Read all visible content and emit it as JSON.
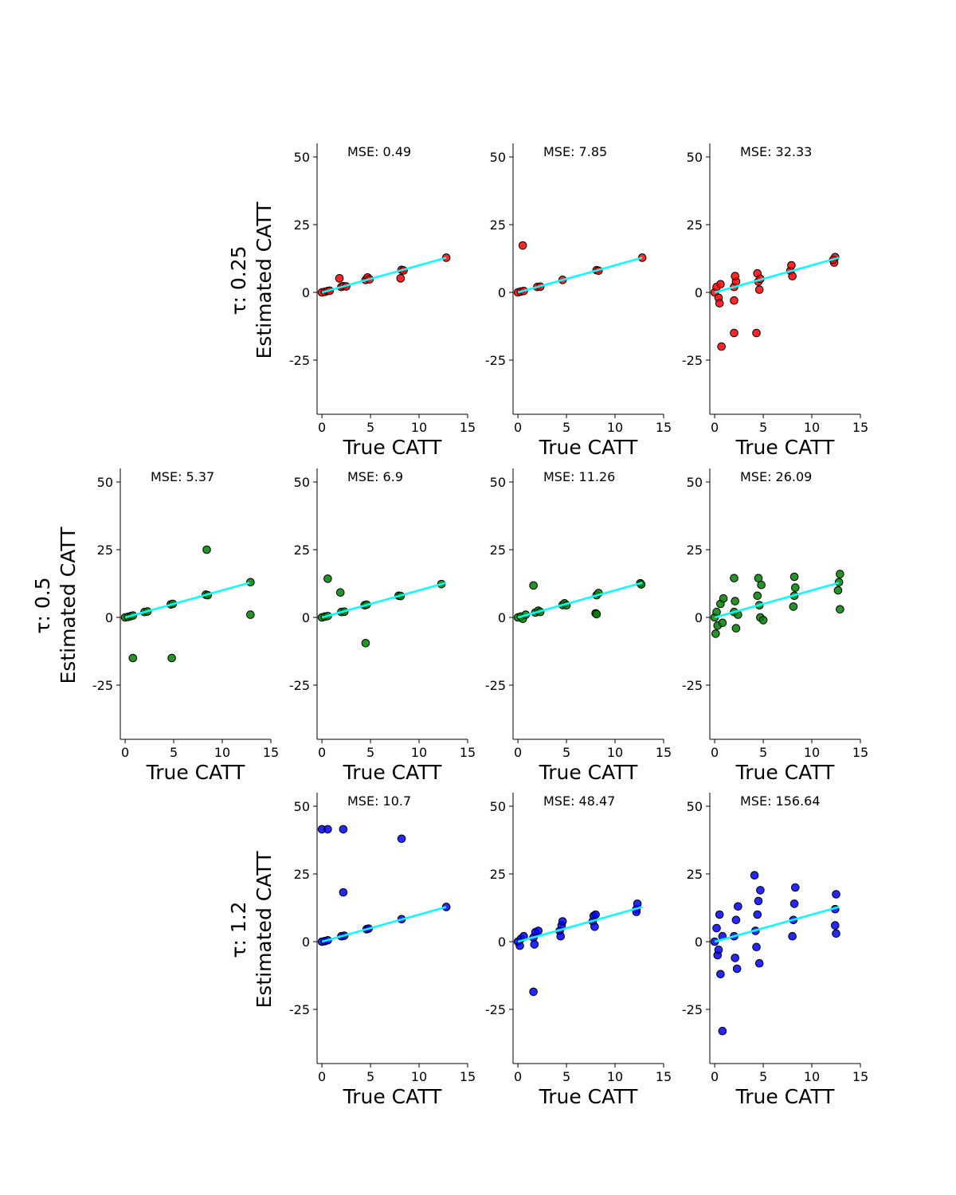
{
  "chart_data": {
    "type": "scatter",
    "xlabel": "True CATT",
    "ylabel": "Estimated CATT",
    "xlim": [
      -0.5,
      15
    ],
    "ylim": [
      -45,
      55
    ],
    "xticks": [
      0,
      5,
      10,
      15
    ],
    "yticks": [
      -25,
      0,
      25,
      50
    ],
    "fit_line": {
      "color": "#00ffff",
      "x": [
        0,
        12.8
      ],
      "y": [
        0,
        12.8
      ]
    },
    "rows": [
      {
        "title_line1": "τ: 0.25",
        "title_line2": "Estimated CATT",
        "color": "#ff0000",
        "panels": [
          null,
          {
            "mse": "MSE: 0.49",
            "points": [
              [
                0,
                0
              ],
              [
                0.3,
                0.2
              ],
              [
                0.6,
                0.5
              ],
              [
                0.8,
                0.6
              ],
              [
                2,
                2
              ],
              [
                2.2,
                2.3
              ],
              [
                2.5,
                2.2
              ],
              [
                1.8,
                5.2
              ],
              [
                4.5,
                4.6
              ],
              [
                4.7,
                5.5
              ],
              [
                4.9,
                4.8
              ],
              [
                8.2,
                8.3
              ],
              [
                8.4,
                8.1
              ],
              [
                8.1,
                5.2
              ],
              [
                12.8,
                12.8
              ]
            ]
          },
          {
            "mse": "MSE: 7.85",
            "points": [
              [
                0,
                0
              ],
              [
                0.3,
                0.3
              ],
              [
                0.6,
                0.5
              ],
              [
                0.5,
                17.3
              ],
              [
                2,
                2
              ],
              [
                2.3,
                2.1
              ],
              [
                4.6,
                4.6
              ],
              [
                8.1,
                8.2
              ],
              [
                8.3,
                8
              ],
              [
                12.8,
                12.8
              ]
            ]
          },
          {
            "mse": "MSE: 32.33",
            "points": [
              [
                0,
                0
              ],
              [
                0.2,
                2
              ],
              [
                0.4,
                -2
              ],
              [
                0.6,
                3
              ],
              [
                0.5,
                -4
              ],
              [
                0.7,
                -20
              ],
              [
                2,
                2
              ],
              [
                2.2,
                4
              ],
              [
                2,
                -3
              ],
              [
                2.1,
                6
              ],
              [
                2,
                -15
              ],
              [
                4.5,
                4
              ],
              [
                4.4,
                7
              ],
              [
                4.6,
                1
              ],
              [
                4.3,
                -15
              ],
              [
                4.7,
                5
              ],
              [
                7.8,
                8
              ],
              [
                7.9,
                10
              ],
              [
                8,
                6
              ],
              [
                12.3,
                11
              ],
              [
                12.4,
                13
              ],
              [
                12.2,
                12
              ]
            ]
          }
        ]
      },
      {
        "title_line1": "τ: 0.5",
        "title_line2": "Estimated CATT",
        "color": "#008000",
        "panels": [
          {
            "mse": "MSE: 5.37",
            "points": [
              [
                0,
                0
              ],
              [
                0.3,
                0.2
              ],
              [
                0.6,
                0.5
              ],
              [
                0.8,
                0.7
              ],
              [
                2,
                2
              ],
              [
                2.3,
                2.2
              ],
              [
                4.7,
                4.8
              ],
              [
                4.9,
                5
              ],
              [
                8.3,
                8.4
              ],
              [
                8.5,
                8.2
              ],
              [
                8.4,
                25
              ],
              [
                12.9,
                13
              ],
              [
                12.9,
                1
              ],
              [
                0.8,
                -15
              ],
              [
                4.8,
                -15
              ]
            ]
          },
          {
            "mse": "MSE: 6.9",
            "points": [
              [
                0,
                0
              ],
              [
                0.3,
                0.3
              ],
              [
                0.6,
                0.5
              ],
              [
                0.6,
                14.3
              ],
              [
                1.9,
                9.2
              ],
              [
                2,
                2
              ],
              [
                2.3,
                2.1
              ],
              [
                4.4,
                4.5
              ],
              [
                4.6,
                4.7
              ],
              [
                4.5,
                -9.5
              ],
              [
                7.9,
                8
              ],
              [
                8.1,
                7.9
              ],
              [
                12.3,
                12.3
              ]
            ]
          },
          {
            "mse": "MSE: 11.26",
            "points": [
              [
                0,
                0
              ],
              [
                0.3,
                0.3
              ],
              [
                0.5,
                -0.5
              ],
              [
                0.8,
                1
              ],
              [
                1.8,
                1.8
              ],
              [
                2.1,
                2.5
              ],
              [
                1.6,
                11.8
              ],
              [
                2.3,
                2
              ],
              [
                4.6,
                4.6
              ],
              [
                4.8,
                5.2
              ],
              [
                5,
                4.5
              ],
              [
                8.1,
                8.2
              ],
              [
                8.3,
                9
              ],
              [
                8,
                1.5
              ],
              [
                8.1,
                1.2
              ],
              [
                12.6,
                12.6
              ],
              [
                12.7,
                12.2
              ]
            ]
          },
          {
            "mse": "MSE: 26.09",
            "points": [
              [
                0,
                0
              ],
              [
                0.2,
                2
              ],
              [
                0.3,
                -3
              ],
              [
                0.6,
                5
              ],
              [
                0.8,
                -2
              ],
              [
                0.1,
                -6
              ],
              [
                0.9,
                7
              ],
              [
                2,
                2
              ],
              [
                2.2,
                -4
              ],
              [
                2.1,
                6
              ],
              [
                2.4,
                1
              ],
              [
                2,
                14.5
              ],
              [
                4.6,
                4.5
              ],
              [
                4.4,
                8
              ],
              [
                4.7,
                0
              ],
              [
                4.5,
                14.5
              ],
              [
                4.8,
                12
              ],
              [
                5,
                -1
              ],
              [
                8.2,
                8
              ],
              [
                8.3,
                11
              ],
              [
                8.1,
                4
              ],
              [
                8.2,
                15
              ],
              [
                12.8,
                13
              ],
              [
                12.9,
                16
              ],
              [
                12.7,
                10
              ],
              [
                12.9,
                3
              ]
            ]
          }
        ]
      },
      {
        "title_line1": "τ: 1.2",
        "title_line2": "Estimated CATT",
        "color": "#0000ff",
        "panels": [
          null,
          {
            "mse": "MSE: 10.7",
            "points": [
              [
                0,
                0
              ],
              [
                0.3,
                0.2
              ],
              [
                0.6,
                0.5
              ],
              [
                0,
                41.5
              ],
              [
                0.6,
                41.5
              ],
              [
                2.2,
                41.5
              ],
              [
                2.2,
                18.2
              ],
              [
                2,
                2
              ],
              [
                2.3,
                2.2
              ],
              [
                4.6,
                4.6
              ],
              [
                4.8,
                4.8
              ],
              [
                8.2,
                8.3
              ],
              [
                8.2,
                38
              ],
              [
                12.8,
                12.8
              ]
            ]
          },
          {
            "mse": "MSE: 48.47",
            "points": [
              [
                0,
                0
              ],
              [
                0.3,
                1
              ],
              [
                0.2,
                -1.5
              ],
              [
                0.6,
                2
              ],
              [
                1.6,
                1.5
              ],
              [
                1.8,
                3.5
              ],
              [
                1.7,
                -1
              ],
              [
                2.1,
                4
              ],
              [
                1.6,
                -18.5
              ],
              [
                4.3,
                4
              ],
              [
                4.5,
                6
              ],
              [
                4.4,
                2
              ],
              [
                4.6,
                7.5
              ],
              [
                7.7,
                7.5
              ],
              [
                7.8,
                9.5
              ],
              [
                7.9,
                5.5
              ],
              [
                8,
                10
              ],
              [
                12.2,
                12
              ],
              [
                12.3,
                14
              ],
              [
                12.2,
                11
              ]
            ]
          },
          {
            "mse": "MSE: 156.64",
            "points": [
              [
                0,
                0
              ],
              [
                0.2,
                5
              ],
              [
                0.3,
                -5
              ],
              [
                0.5,
                10
              ],
              [
                0.6,
                -12
              ],
              [
                0.4,
                -3
              ],
              [
                0.8,
                2
              ],
              [
                0.8,
                -33
              ],
              [
                2,
                2
              ],
              [
                2.2,
                8
              ],
              [
                2.1,
                -6
              ],
              [
                2.4,
                13
              ],
              [
                2.3,
                -10
              ],
              [
                4.2,
                4
              ],
              [
                4.4,
                10
              ],
              [
                4.3,
                -2
              ],
              [
                4.1,
                24.5
              ],
              [
                4.5,
                15
              ],
              [
                4.6,
                -8
              ],
              [
                4.7,
                19
              ],
              [
                8.1,
                8
              ],
              [
                8.2,
                14
              ],
              [
                8,
                2
              ],
              [
                8.3,
                20
              ],
              [
                12.4,
                12
              ],
              [
                12.5,
                17.5
              ],
              [
                12.4,
                6
              ],
              [
                12.5,
                3
              ]
            ]
          }
        ]
      }
    ]
  }
}
